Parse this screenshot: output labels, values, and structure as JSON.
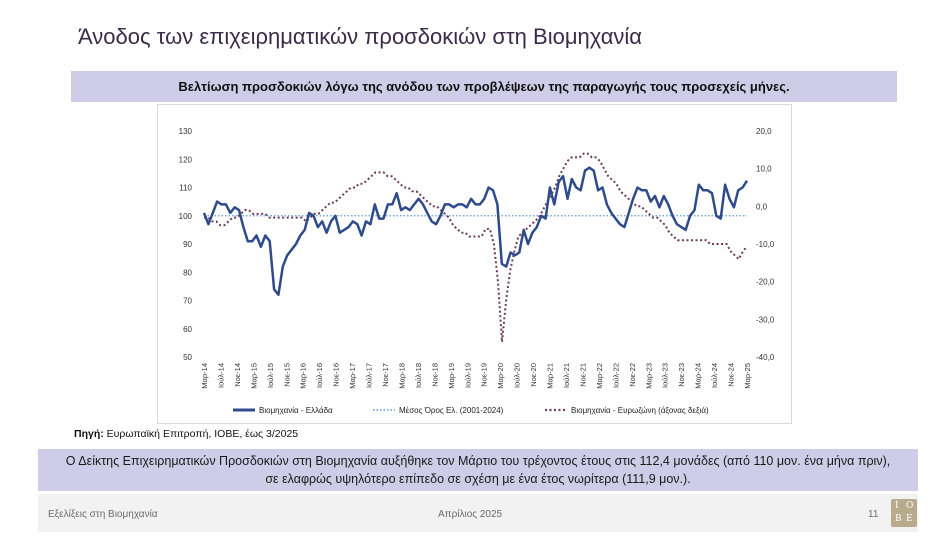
{
  "slide": {
    "title": "Άνοδος των επιχειρηματικών προσδοκιών στη Βιομηχανία",
    "subtitle": "Βελτίωση προσδοκιών λόγω της ανόδου των προβλέψεων της παραγωγής τους προσεχείς μήνες.",
    "source_label": "Πηγή:",
    "source_text": " Ευρωπαϊκή Επιτροπή, ΙΟΒΕ, έως 3/2025",
    "summary": "Ο Δείκτης Επιχειρηματικών Προσδοκιών στη Βιομηχανία αυξήθηκε τον Μάρτιο του τρέχοντος έτους στις 112,4 μονάδες (από 110 μον. ένα μήνα πριν), σε ελαφρώς υψηλότερο επίπεδο σε σχέση με ένα έτος νωρίτερα (111,9 μον.).",
    "footer_left": "Εξελίξεις στη Βιομηχανία",
    "footer_center": "Απρίλιος 2025",
    "page_number": "11",
    "logo_letters": [
      "I",
      "O",
      "B",
      "E"
    ]
  },
  "chart_data": {
    "type": "line",
    "title": "",
    "xlabel": "",
    "ylabel": "",
    "ylim_left": [
      50,
      130
    ],
    "ylim_right": [
      -40,
      20
    ],
    "yticks_left": [
      "130",
      "120",
      "110",
      "100",
      "90",
      "80",
      "70",
      "60",
      "50"
    ],
    "yticks_right": [
      "20,0",
      "10,0",
      "0,0",
      "-10,0",
      "-20,0",
      "-30,0",
      "-40,0"
    ],
    "x_tick_labels": [
      "Μαρ-14",
      "Ιούλ-14",
      "Νοε-14",
      "Μαρ-15",
      "Ιούλ-15",
      "Νοε-15",
      "Μαρ-16",
      "Ιούλ-16",
      "Νοε-16",
      "Μαρ-17",
      "Ιούλ-17",
      "Νοε-17",
      "Μαρ-18",
      "Ιούλ-18",
      "Νοε-18",
      "Μαρ-19",
      "Ιούλ-19",
      "Νοε-19",
      "Μαρ-20",
      "Ιούλ-20",
      "Νοε-20",
      "Μαρ-21",
      "Ιούλ-21",
      "Νοε-21",
      "Μαρ-22",
      "Ιούλ-22",
      "Νοε-22",
      "Μαρ-23",
      "Ιούλ-23",
      "Νοε-23",
      "Μαρ-24",
      "Ιούλ-24",
      "Νοε-24",
      "Μαρ-25"
    ],
    "series": [
      {
        "name": "Βιομηχανία  - Ελλάδα",
        "axis": "left",
        "style": "solid",
        "color": "#2f4b8c",
        "values": [
          101,
          97,
          101,
          105,
          104,
          104,
          101,
          103,
          102,
          96,
          91,
          91,
          93,
          89,
          93,
          91,
          74,
          72,
          82,
          86,
          88,
          90,
          93,
          95,
          101,
          100,
          96,
          98,
          94,
          98,
          100,
          94,
          95,
          96,
          98,
          97,
          93,
          98,
          97,
          104,
          99,
          99,
          104,
          104,
          108,
          102,
          103,
          102,
          104,
          106,
          104,
          101,
          98,
          97,
          100,
          104,
          104,
          103,
          104,
          104,
          103,
          106,
          104,
          104,
          106,
          110,
          109,
          104,
          83,
          82,
          87,
          86,
          87,
          95,
          90,
          94,
          96,
          100,
          99,
          110,
          104,
          112,
          114,
          106,
          113,
          110,
          109,
          116,
          117,
          116,
          109,
          110,
          104,
          101,
          99,
          97,
          96,
          101,
          106,
          110,
          109,
          109,
          105,
          107,
          103,
          107,
          104,
          100,
          97,
          96,
          95,
          100,
          102,
          111,
          109,
          109,
          108,
          100,
          99,
          111,
          106,
          103,
          109,
          110,
          112.4
        ]
      },
      {
        "name": "Μέσος Όρος Ελ. (2001-2024)",
        "axis": "left",
        "style": "dotted",
        "color": "#5b9bd5",
        "values": [
          100
        ]
      },
      {
        "name": "Βιομηχανία - Ευρωζώνη (άξονας δεξιά)",
        "axis": "right",
        "style": "dotted",
        "color": "#6b3a5d",
        "values": [
          -3,
          -3,
          -4,
          -4,
          -5,
          -5,
          -4,
          -3,
          -3,
          -2,
          -1,
          -1,
          -2,
          -2,
          -2,
          -2,
          -3,
          -3,
          -3,
          -3,
          -3,
          -3,
          -3,
          -3,
          -3,
          -4,
          -3,
          -2,
          -2,
          -1,
          0,
          1,
          1,
          2,
          3,
          4,
          5,
          5,
          6,
          6,
          7,
          8,
          9,
          9,
          9,
          8,
          8,
          7,
          6,
          5,
          5,
          4,
          4,
          3,
          2,
          1,
          0,
          0,
          -1,
          -2,
          -3,
          -5,
          -6,
          -7,
          -7,
          -8,
          -8,
          -8,
          -8,
          -6,
          -6,
          -10,
          -20,
          -36,
          -25,
          -17,
          -12,
          -8,
          -7,
          -6,
          -5,
          -4,
          -3,
          -1,
          1,
          3,
          5,
          8,
          10,
          12,
          13,
          13,
          13,
          14,
          14,
          13,
          13,
          12,
          10,
          8,
          7,
          6,
          4,
          3,
          2,
          1,
          0,
          0,
          -1,
          -2,
          -3,
          -3,
          -4,
          -5,
          -7,
          -8,
          -9,
          -9,
          -9,
          -9,
          -9,
          -9,
          -9,
          -9,
          -10,
          -10,
          -10,
          -10,
          -10,
          -12,
          -13,
          -14,
          -12,
          -10.6
        ]
      }
    ]
  }
}
